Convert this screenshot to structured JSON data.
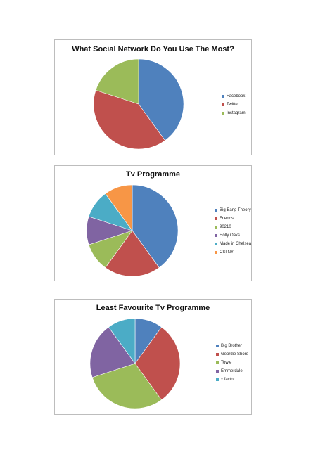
{
  "chart_data": [
    {
      "type": "pie",
      "title": "What Social Network Do You Use The Most?",
      "categories": [
        "Facebook",
        "Twitter",
        "Instagram"
      ],
      "values": [
        40,
        40,
        20
      ],
      "colors": [
        "#4f81bd",
        "#c0504d",
        "#9bbb59"
      ],
      "legend_position": "right"
    },
    {
      "type": "pie",
      "title": "Tv Programme",
      "categories": [
        "Big Bang Theory",
        "Friends",
        "90210",
        "Holly Oaks",
        "Made in Chelsea",
        "CSI NY"
      ],
      "values": [
        40,
        20,
        10,
        10,
        10,
        10
      ],
      "colors": [
        "#4f81bd",
        "#c0504d",
        "#9bbb59",
        "#8064a2",
        "#4bacc6",
        "#f79646"
      ],
      "legend_position": "right"
    },
    {
      "type": "pie",
      "title": "Least Favourite Tv Programme",
      "categories": [
        "Big Brother",
        "Geordie Shore",
        "Towie",
        "Emmerdale",
        "x factor"
      ],
      "values": [
        10,
        30,
        30,
        20,
        10
      ],
      "colors": [
        "#4f81bd",
        "#c0504d",
        "#9bbb59",
        "#8064a2",
        "#4bacc6"
      ],
      "legend_position": "right"
    }
  ]
}
